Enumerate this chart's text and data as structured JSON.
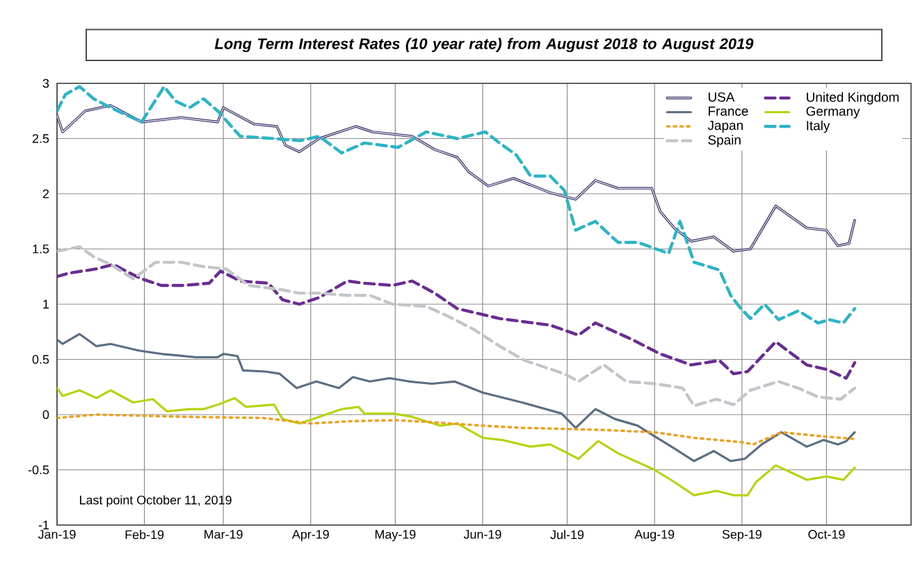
{
  "chart_data": {
    "type": "line",
    "title": "Long Term Interest Rates (10 year rate) from August 2018 to August 2019",
    "annotations": [
      "Last point October 11, 2019"
    ],
    "xlim": [
      "2019-01-01",
      "2019-10-31"
    ],
    "xticks": [
      {
        "value": "2019-01-01",
        "label": "Jan-19"
      },
      {
        "value": "2019-02-01",
        "label": "Feb-19"
      },
      {
        "value": "2019-03-01",
        "label": "Mar-19"
      },
      {
        "value": "2019-04-01",
        "label": "Apr-19"
      },
      {
        "value": "2019-05-01",
        "label": "May-19"
      },
      {
        "value": "2019-06-01",
        "label": "Jun-19"
      },
      {
        "value": "2019-07-01",
        "label": "Jul-19"
      },
      {
        "value": "2019-08-01",
        "label": "Aug-19"
      },
      {
        "value": "2019-09-01",
        "label": "Sep-19"
      },
      {
        "value": "2019-10-01",
        "label": "Oct-19"
      }
    ],
    "ylim": [
      -1,
      3
    ],
    "yticks": [
      -1,
      -0.5,
      0,
      0.5,
      1,
      1.5,
      2,
      2.5,
      3
    ],
    "grid": true,
    "legend": "top right",
    "series": [
      {
        "name": "USA",
        "color": "#2f2a64",
        "line_style": "solid",
        "x": [
          "2019-01-01",
          "2019-01-03",
          "2019-01-11",
          "2019-01-20",
          "2019-01-31",
          "2019-02-14",
          "2019-02-27",
          "2019-03-01",
          "2019-03-12",
          "2019-03-20",
          "2019-03-23",
          "2019-03-28",
          "2019-04-04",
          "2019-04-17",
          "2019-04-23",
          "2019-05-07",
          "2019-05-15",
          "2019-05-23",
          "2019-05-27",
          "2019-06-03",
          "2019-06-12",
          "2019-06-25",
          "2019-07-04",
          "2019-07-11",
          "2019-07-19",
          "2019-07-31",
          "2019-08-03",
          "2019-08-08",
          "2019-08-14",
          "2019-08-22",
          "2019-08-29",
          "2019-09-04",
          "2019-09-13",
          "2019-09-24",
          "2019-10-01",
          "2019-10-05",
          "2019-10-09",
          "2019-10-11"
        ],
        "values": [
          2.71,
          2.56,
          2.75,
          2.8,
          2.65,
          2.69,
          2.65,
          2.78,
          2.63,
          2.61,
          2.44,
          2.38,
          2.5,
          2.61,
          2.56,
          2.52,
          2.4,
          2.33,
          2.2,
          2.07,
          2.14,
          2.01,
          1.95,
          2.12,
          2.05,
          2.05,
          1.84,
          1.69,
          1.57,
          1.61,
          1.48,
          1.5,
          1.89,
          1.69,
          1.67,
          1.53,
          1.55,
          1.76
        ]
      },
      {
        "name": "United Kingdom",
        "color": "#6a2c91",
        "line_style": "dashed",
        "x": [
          "2019-01-01",
          "2019-01-05",
          "2019-01-15",
          "2019-01-21",
          "2019-01-27",
          "2019-01-31",
          "2019-02-07",
          "2019-02-15",
          "2019-02-24",
          "2019-02-28",
          "2019-03-07",
          "2019-03-17",
          "2019-03-22",
          "2019-03-28",
          "2019-04-04",
          "2019-04-14",
          "2019-04-20",
          "2019-04-30",
          "2019-05-07",
          "2019-05-15",
          "2019-05-23",
          "2019-06-07",
          "2019-06-25",
          "2019-07-05",
          "2019-07-11",
          "2019-07-24",
          "2019-08-03",
          "2019-08-14",
          "2019-08-24",
          "2019-08-29",
          "2019-09-03",
          "2019-09-13",
          "2019-09-24",
          "2019-10-01",
          "2019-10-08",
          "2019-10-11"
        ],
        "values": [
          1.25,
          1.28,
          1.32,
          1.36,
          1.28,
          1.23,
          1.17,
          1.17,
          1.19,
          1.3,
          1.21,
          1.19,
          1.04,
          1.0,
          1.06,
          1.21,
          1.19,
          1.17,
          1.21,
          1.1,
          0.96,
          0.87,
          0.81,
          0.72,
          0.83,
          0.68,
          0.55,
          0.45,
          0.49,
          0.37,
          0.39,
          0.66,
          0.45,
          0.41,
          0.33,
          0.47
        ]
      },
      {
        "name": "France",
        "color": "#5b6e84",
        "line_style": "solid",
        "x": [
          "2019-01-01",
          "2019-01-03",
          "2019-01-09",
          "2019-01-15",
          "2019-01-20",
          "2019-01-30",
          "2019-02-07",
          "2019-02-19",
          "2019-02-27",
          "2019-03-01",
          "2019-03-06",
          "2019-03-08",
          "2019-03-16",
          "2019-03-21",
          "2019-03-27",
          "2019-04-03",
          "2019-04-11",
          "2019-04-16",
          "2019-04-22",
          "2019-04-29",
          "2019-05-06",
          "2019-05-14",
          "2019-05-22",
          "2019-05-30",
          "2019-06-01",
          "2019-06-15",
          "2019-06-29",
          "2019-07-04",
          "2019-07-11",
          "2019-07-18",
          "2019-07-26",
          "2019-07-31",
          "2019-08-07",
          "2019-08-15",
          "2019-08-22",
          "2019-08-28",
          "2019-09-02",
          "2019-09-08",
          "2019-09-15",
          "2019-09-24",
          "2019-09-30",
          "2019-10-05",
          "2019-10-08",
          "2019-10-11"
        ],
        "values": [
          0.68,
          0.64,
          0.73,
          0.62,
          0.64,
          0.58,
          0.55,
          0.52,
          0.52,
          0.55,
          0.53,
          0.4,
          0.39,
          0.37,
          0.24,
          0.3,
          0.24,
          0.34,
          0.3,
          0.33,
          0.3,
          0.28,
          0.3,
          0.22,
          0.2,
          0.11,
          0.01,
          -0.12,
          0.05,
          -0.04,
          -0.1,
          -0.18,
          -0.29,
          -0.42,
          -0.33,
          -0.42,
          -0.4,
          -0.27,
          -0.16,
          -0.29,
          -0.23,
          -0.27,
          -0.24,
          -0.16
        ]
      },
      {
        "name": "Germany",
        "color": "#b9d20f",
        "line_style": "solid",
        "x": [
          "2019-01-01",
          "2019-01-03",
          "2019-01-09",
          "2019-01-15",
          "2019-01-20",
          "2019-01-28",
          "2019-02-04",
          "2019-02-09",
          "2019-02-17",
          "2019-02-22",
          "2019-02-27",
          "2019-03-05",
          "2019-03-09",
          "2019-03-19",
          "2019-03-22",
          "2019-03-28",
          "2019-04-04",
          "2019-04-12",
          "2019-04-18",
          "2019-04-20",
          "2019-04-30",
          "2019-05-07",
          "2019-05-17",
          "2019-05-23",
          "2019-06-01",
          "2019-06-08",
          "2019-06-18",
          "2019-06-25",
          "2019-07-05",
          "2019-07-12",
          "2019-07-19",
          "2019-08-01",
          "2019-08-08",
          "2019-08-15",
          "2019-08-23",
          "2019-08-29",
          "2019-09-03",
          "2019-09-06",
          "2019-09-13",
          "2019-09-24",
          "2019-10-01",
          "2019-10-07",
          "2019-10-11"
        ],
        "values": [
          0.24,
          0.17,
          0.22,
          0.15,
          0.22,
          0.11,
          0.14,
          0.03,
          0.05,
          0.05,
          0.09,
          0.15,
          0.07,
          0.09,
          -0.04,
          -0.08,
          -0.02,
          0.05,
          0.07,
          0.01,
          0.01,
          -0.02,
          -0.1,
          -0.08,
          -0.21,
          -0.23,
          -0.29,
          -0.27,
          -0.4,
          -0.24,
          -0.35,
          -0.5,
          -0.61,
          -0.73,
          -0.69,
          -0.73,
          -0.73,
          -0.61,
          -0.46,
          -0.59,
          -0.56,
          -0.59,
          -0.48
        ]
      },
      {
        "name": "Japan",
        "color": "#f0a020",
        "line_style": "dotted",
        "x": [
          "2019-01-01",
          "2019-01-15",
          "2019-02-15",
          "2019-03-15",
          "2019-04-01",
          "2019-04-15",
          "2019-05-01",
          "2019-05-15",
          "2019-06-01",
          "2019-06-15",
          "2019-07-01",
          "2019-07-15",
          "2019-08-01",
          "2019-08-15",
          "2019-09-01",
          "2019-09-05",
          "2019-09-15",
          "2019-10-01",
          "2019-10-11"
        ],
        "values": [
          -0.03,
          0.0,
          -0.02,
          -0.03,
          -0.08,
          -0.06,
          -0.05,
          -0.07,
          -0.1,
          -0.12,
          -0.13,
          -0.14,
          -0.16,
          -0.21,
          -0.25,
          -0.27,
          -0.16,
          -0.2,
          -0.22
        ]
      },
      {
        "name": "Italy",
        "color": "#2ab4c6",
        "line_style": "dashed",
        "x": [
          "2019-01-01",
          "2019-01-04",
          "2019-01-09",
          "2019-01-14",
          "2019-01-20",
          "2019-01-31",
          "2019-02-08",
          "2019-02-12",
          "2019-02-17",
          "2019-02-22",
          "2019-02-27",
          "2019-03-07",
          "2019-03-19",
          "2019-03-28",
          "2019-04-04",
          "2019-04-12",
          "2019-04-20",
          "2019-05-02",
          "2019-05-12",
          "2019-05-23",
          "2019-06-02",
          "2019-06-07",
          "2019-06-13",
          "2019-06-18",
          "2019-06-25",
          "2019-06-30",
          "2019-07-04",
          "2019-07-11",
          "2019-07-19",
          "2019-07-26",
          "2019-08-06",
          "2019-08-10",
          "2019-08-15",
          "2019-08-24",
          "2019-08-28",
          "2019-08-31",
          "2019-09-04",
          "2019-09-09",
          "2019-09-14",
          "2019-09-21",
          "2019-09-28",
          "2019-10-02",
          "2019-10-07",
          "2019-10-11"
        ],
        "values": [
          2.75,
          2.9,
          2.97,
          2.86,
          2.78,
          2.65,
          2.97,
          2.84,
          2.78,
          2.86,
          2.75,
          2.52,
          2.5,
          2.48,
          2.52,
          2.37,
          2.46,
          2.42,
          2.56,
          2.5,
          2.56,
          2.46,
          2.35,
          2.16,
          2.16,
          2.03,
          1.67,
          1.75,
          1.56,
          1.56,
          1.46,
          1.75,
          1.38,
          1.31,
          1.08,
          0.98,
          0.87,
          1.0,
          0.86,
          0.94,
          0.83,
          0.86,
          0.83,
          0.96
        ]
      },
      {
        "name": "Spain",
        "color": "#c2c6ca",
        "line_style": "dashed",
        "x": [
          "2019-01-01",
          "2019-01-09",
          "2019-01-14",
          "2019-01-20",
          "2019-01-28",
          "2019-02-05",
          "2019-02-14",
          "2019-02-22",
          "2019-03-02",
          "2019-03-10",
          "2019-03-22",
          "2019-03-28",
          "2019-04-04",
          "2019-04-14",
          "2019-04-22",
          "2019-04-30",
          "2019-05-12",
          "2019-05-19",
          "2019-05-29",
          "2019-06-07",
          "2019-06-16",
          "2019-06-30",
          "2019-07-05",
          "2019-07-14",
          "2019-07-22",
          "2019-08-01",
          "2019-08-11",
          "2019-08-15",
          "2019-08-23",
          "2019-08-29",
          "2019-09-04",
          "2019-09-14",
          "2019-09-21",
          "2019-09-28",
          "2019-10-06",
          "2019-10-11"
        ],
        "values": [
          1.48,
          1.52,
          1.43,
          1.36,
          1.23,
          1.38,
          1.38,
          1.34,
          1.32,
          1.17,
          1.13,
          1.1,
          1.1,
          1.08,
          1.08,
          1.0,
          0.98,
          0.9,
          0.77,
          0.62,
          0.49,
          0.37,
          0.3,
          0.45,
          0.3,
          0.28,
          0.24,
          0.08,
          0.14,
          0.09,
          0.22,
          0.3,
          0.24,
          0.16,
          0.14,
          0.24
        ]
      }
    ]
  }
}
